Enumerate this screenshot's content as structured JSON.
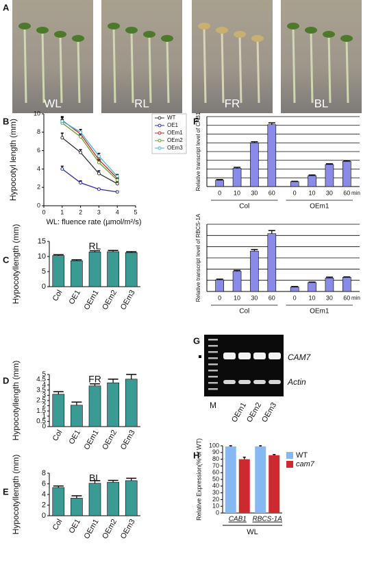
{
  "figure": {
    "panel_labels": [
      "A",
      "B",
      "C",
      "D",
      "E",
      "F",
      "G",
      "H"
    ],
    "photos": [
      "WL",
      "RL",
      "FR",
      "BL"
    ],
    "gel": {
      "lanes": [
        "M",
        "OEm1",
        "OEm2",
        "OEm3"
      ],
      "bands": [
        "CAM7",
        "Actin"
      ]
    }
  },
  "chart_data": [
    {
      "type": "line",
      "ylabel": "Hypocotyl length (mm)",
      "xlabel": "WL: fluence rate (µmol/m²/s)",
      "x": [
        1,
        2,
        3,
        4
      ],
      "xlim": [
        0,
        5
      ],
      "xticks": [
        0,
        1,
        2,
        3,
        4,
        5
      ],
      "ylim": [
        0,
        10
      ],
      "yticks": [
        0,
        2,
        4,
        6,
        8,
        10
      ],
      "series": [
        {
          "name": "WT",
          "color": "#333333",
          "values": [
            7.4,
            5.8,
            3.5,
            2.4
          ],
          "errors": [
            0.5,
            0.3,
            0.3,
            0.2
          ]
        },
        {
          "name": "OE1",
          "color": "#2a2aa8",
          "values": [
            4.0,
            2.5,
            1.8,
            1.5
          ],
          "errors": [
            0.3,
            0.2,
            0.1,
            0.1
          ]
        },
        {
          "name": "OEm1",
          "color": "#cc2222",
          "values": [
            9.3,
            7.8,
            5.0,
            3.0
          ],
          "errors": [
            0.4,
            0.3,
            0.3,
            0.2
          ]
        },
        {
          "name": "OEm2",
          "color": "#6a9a2a",
          "values": [
            9.0,
            7.5,
            4.7,
            2.8
          ],
          "errors": [
            0.4,
            0.3,
            0.3,
            0.2
          ]
        },
        {
          "name": "OEm3",
          "color": "#39b7d8",
          "values": [
            9.2,
            8.0,
            5.4,
            3.2
          ],
          "errors": [
            0.4,
            0.3,
            0.3,
            0.2
          ]
        }
      ]
    },
    {
      "type": "bar",
      "title": "RL",
      "ylabel": "Hypocotyllength (mm)",
      "color": "#3a9a94",
      "categories": [
        "Col",
        "OE1",
        "OEm1",
        "OEm2",
        "OEm3"
      ],
      "values": [
        10.3,
        8.6,
        11.5,
        11.6,
        11.3
      ],
      "errors": [
        0.3,
        0.3,
        0.4,
        0.4,
        0.3
      ],
      "ylim": [
        0,
        15
      ],
      "yticks": [
        0,
        5,
        10,
        15
      ]
    },
    {
      "type": "bar",
      "title": "FR",
      "ylabel": "Hypocotyllength (mm)",
      "color": "#3a9a94",
      "categories": [
        "Col",
        "OE1",
        "OEm1",
        "OEm2",
        "OEm3"
      ],
      "values": [
        3.1,
        2.05,
        3.9,
        4.2,
        4.55
      ],
      "errors": [
        0.25,
        0.3,
        0.2,
        0.35,
        0.45
      ],
      "ylim": [
        0,
        5
      ],
      "yticks": [
        0,
        0.5,
        1,
        1.5,
        2,
        2.5,
        3,
        3.5,
        4,
        4.5,
        5
      ]
    },
    {
      "type": "bar",
      "title": "BL",
      "ylabel": "Hypocotyllength (mm)",
      "color": "#3a9a94",
      "categories": [
        "Col",
        "OE1",
        "OEm1",
        "OEm2",
        "OEm3"
      ],
      "values": [
        5.3,
        3.3,
        6.1,
        6.3,
        6.6
      ],
      "errors": [
        0.3,
        0.45,
        0.5,
        0.35,
        0.45
      ],
      "ylim": [
        0,
        8
      ],
      "yticks": [
        0,
        2,
        4,
        6,
        8
      ]
    },
    {
      "type": "bar",
      "ylabel": "Relative transcript level of CAB1",
      "color": "#8a8ae8",
      "grid": true,
      "ytick_labels": false,
      "categories": [
        "0",
        "10",
        "30",
        "60",
        "0",
        "10",
        "30",
        "60"
      ],
      "groups": [
        "Col",
        "OEm1"
      ],
      "x_unit": "min",
      "values": [
        18,
        52,
        125,
        177,
        14,
        31,
        63,
        72
      ],
      "errors": [
        2,
        3,
        3,
        5,
        1,
        2,
        2,
        2
      ],
      "ylim": [
        0,
        200
      ],
      "yticks": [
        0,
        25,
        50,
        75,
        100,
        125,
        150,
        175,
        200
      ]
    },
    {
      "type": "bar",
      "ylabel": "Relative transcript level of RBCS-1A",
      "color": "#8a8ae8",
      "grid": true,
      "ytick_labels": false,
      "categories": [
        "0",
        "10",
        "30",
        "60",
        "0",
        "10",
        "30",
        "60"
      ],
      "groups": [
        "Col",
        "OEm1"
      ],
      "x_unit": "min",
      "values": [
        52,
        90,
        180,
        258,
        20,
        40,
        60,
        63
      ],
      "errors": [
        3,
        4,
        7,
        14,
        2,
        2,
        4,
        2
      ],
      "ylim": [
        0,
        300
      ],
      "yticks": [
        0,
        50,
        100,
        150,
        200,
        250,
        300
      ]
    },
    {
      "type": "grouped-bar",
      "ylabel": "Relative Expression(% of WT)",
      "xlabel": "WL",
      "categories": [
        "CAB1",
        "RBCS-1A"
      ],
      "ylim": [
        0,
        100
      ],
      "yticks": [
        0,
        10,
        20,
        30,
        40,
        50,
        60,
        70,
        80,
        90,
        100
      ],
      "series": [
        {
          "name": "WT",
          "color": "#86b8f2",
          "values": [
            99,
            99
          ],
          "errors": [
            1,
            1
          ]
        },
        {
          "name": "cam7",
          "color": "#cc2a2e",
          "values": [
            80,
            86
          ],
          "errors": [
            3,
            1
          ]
        }
      ]
    }
  ]
}
